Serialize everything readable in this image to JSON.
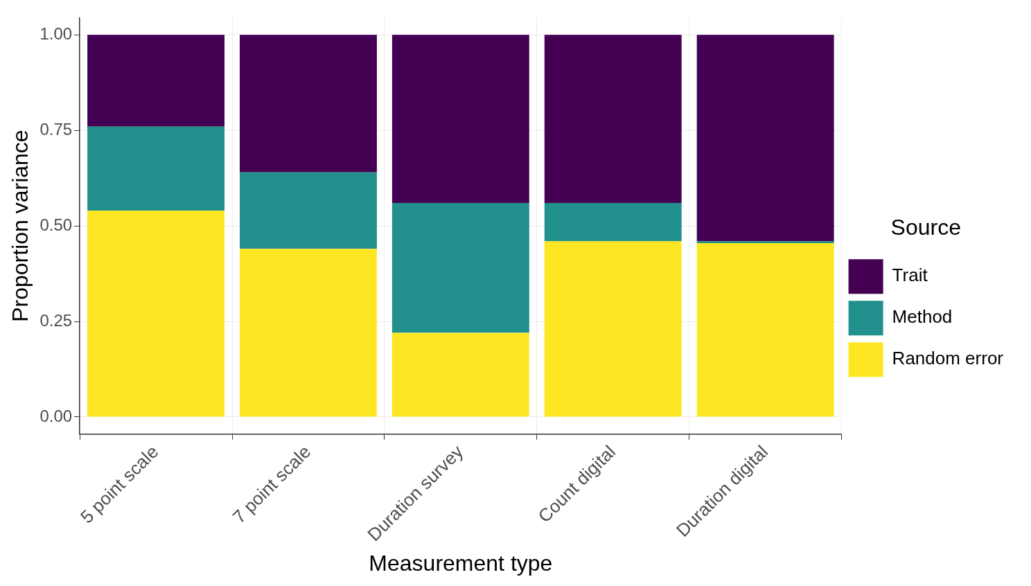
{
  "chart_data": {
    "type": "bar",
    "xlabel": "Measurement type",
    "ylabel": "Proportion variance",
    "legend_title": "Source",
    "categories": [
      "5 point scale",
      "7 point scale",
      "Duration survey",
      "Count digital",
      "Duration digital"
    ],
    "stacked": true,
    "series": [
      {
        "name": "Random error",
        "color": "#fde725",
        "values": [
          0.54,
          0.44,
          0.22,
          0.46,
          0.455
        ]
      },
      {
        "name": "Method",
        "color": "#21908c",
        "values": [
          0.22,
          0.2,
          0.34,
          0.1,
          0.005
        ]
      },
      {
        "name": "Trait",
        "color": "#440154",
        "values": [
          0.24,
          0.36,
          0.44,
          0.44,
          0.54
        ]
      }
    ],
    "ylim": [
      -0.045,
      1.045
    ],
    "yticks": [
      {
        "value": 0,
        "label": "0.00"
      },
      {
        "value": 0.25,
        "label": "0.25"
      },
      {
        "value": 0.5,
        "label": "0.50"
      },
      {
        "value": 0.75,
        "label": "0.75"
      },
      {
        "value": 1,
        "label": "1.00"
      }
    ],
    "grid": true,
    "legend": "right"
  }
}
